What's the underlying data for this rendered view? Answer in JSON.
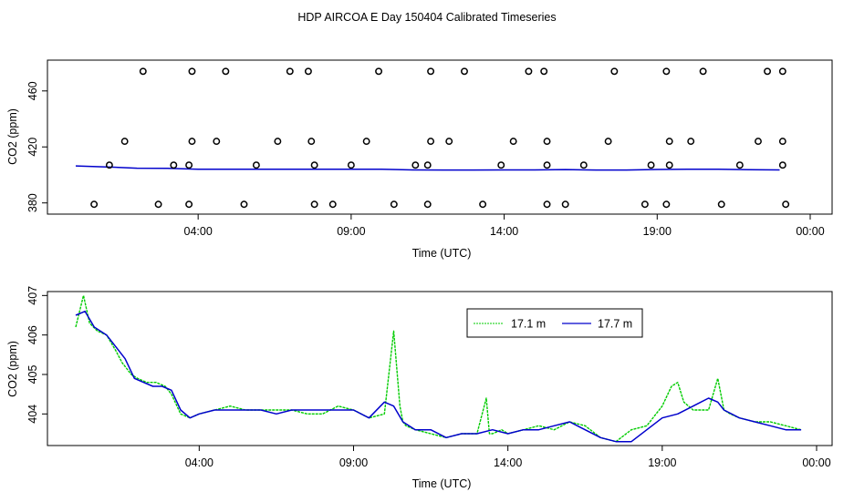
{
  "title": "HDP AIRCOA E  Day 150404  Calibrated Timeseries",
  "chart_data": [
    {
      "type": "scatter",
      "xlabel": "Time (UTC)",
      "ylabel": "CO2 (ppm)",
      "x_unit": "hours",
      "xlim": [
        0,
        24
      ],
      "ylim": [
        372,
        482
      ],
      "x_ticks": [
        {
          "label": "04:00",
          "value": 4
        },
        {
          "label": "09:00",
          "value": 9
        },
        {
          "label": "14:00",
          "value": 14
        },
        {
          "label": "19:00",
          "value": 19
        },
        {
          "label": "00:00",
          "value": 24
        }
      ],
      "y_ticks": [
        380,
        420,
        460
      ],
      "calibration_points": [
        {
          "x": 2.2,
          "y": 474
        },
        {
          "x": 3.8,
          "y": 474
        },
        {
          "x": 4.9,
          "y": 474
        },
        {
          "x": 7.0,
          "y": 474
        },
        {
          "x": 7.6,
          "y": 474
        },
        {
          "x": 9.9,
          "y": 474
        },
        {
          "x": 11.6,
          "y": 474
        },
        {
          "x": 12.7,
          "y": 474
        },
        {
          "x": 14.8,
          "y": 474
        },
        {
          "x": 15.3,
          "y": 474
        },
        {
          "x": 17.6,
          "y": 474
        },
        {
          "x": 19.3,
          "y": 474
        },
        {
          "x": 20.5,
          "y": 474
        },
        {
          "x": 22.6,
          "y": 474
        },
        {
          "x": 23.1,
          "y": 474
        },
        {
          "x": 1.6,
          "y": 424
        },
        {
          "x": 3.8,
          "y": 424
        },
        {
          "x": 4.6,
          "y": 424
        },
        {
          "x": 6.6,
          "y": 424
        },
        {
          "x": 7.7,
          "y": 424
        },
        {
          "x": 9.5,
          "y": 424
        },
        {
          "x": 11.6,
          "y": 424
        },
        {
          "x": 12.2,
          "y": 424
        },
        {
          "x": 14.3,
          "y": 424
        },
        {
          "x": 15.4,
          "y": 424
        },
        {
          "x": 17.4,
          "y": 424
        },
        {
          "x": 19.4,
          "y": 424
        },
        {
          "x": 20.1,
          "y": 424
        },
        {
          "x": 22.3,
          "y": 424
        },
        {
          "x": 23.1,
          "y": 424
        },
        {
          "x": 1.1,
          "y": 407
        },
        {
          "x": 3.2,
          "y": 407
        },
        {
          "x": 3.7,
          "y": 407
        },
        {
          "x": 5.9,
          "y": 407
        },
        {
          "x": 7.8,
          "y": 407
        },
        {
          "x": 9.0,
          "y": 407
        },
        {
          "x": 11.1,
          "y": 407
        },
        {
          "x": 11.5,
          "y": 407
        },
        {
          "x": 13.9,
          "y": 407
        },
        {
          "x": 15.4,
          "y": 407
        },
        {
          "x": 16.6,
          "y": 407
        },
        {
          "x": 18.8,
          "y": 407
        },
        {
          "x": 19.4,
          "y": 407
        },
        {
          "x": 21.7,
          "y": 407
        },
        {
          "x": 23.1,
          "y": 407
        },
        {
          "x": 0.6,
          "y": 379
        },
        {
          "x": 2.7,
          "y": 379
        },
        {
          "x": 3.7,
          "y": 379
        },
        {
          "x": 5.5,
          "y": 379
        },
        {
          "x": 7.8,
          "y": 379
        },
        {
          "x": 8.4,
          "y": 379
        },
        {
          "x": 10.4,
          "y": 379
        },
        {
          "x": 11.5,
          "y": 379
        },
        {
          "x": 13.3,
          "y": 379
        },
        {
          "x": 15.4,
          "y": 379
        },
        {
          "x": 16.0,
          "y": 379
        },
        {
          "x": 18.6,
          "y": 379
        },
        {
          "x": 19.3,
          "y": 379
        },
        {
          "x": 21.1,
          "y": 379
        },
        {
          "x": 23.2,
          "y": 379
        }
      ],
      "series": [
        {
          "color": "#0000cc",
          "x": [
            0,
            1,
            2,
            3,
            4,
            5,
            6,
            7,
            8,
            9,
            10,
            11,
            12,
            13,
            14,
            15,
            16,
            17,
            18,
            19,
            20,
            21,
            22,
            23
          ],
          "y": [
            406.4,
            405.7,
            404.8,
            404.7,
            404.0,
            404.1,
            404.1,
            404.1,
            404.1,
            404.1,
            404.0,
            403.6,
            403.5,
            403.5,
            403.6,
            403.6,
            403.8,
            403.5,
            403.5,
            403.9,
            404.1,
            404.0,
            403.7,
            403.6
          ]
        }
      ]
    },
    {
      "type": "line",
      "xlabel": "Time (UTC)",
      "ylabel": "CO2 (ppm)",
      "x_unit": "hours",
      "xlim": [
        0,
        24
      ],
      "ylim": [
        403.2,
        407.1
      ],
      "x_ticks": [
        {
          "label": "04:00",
          "value": 4
        },
        {
          "label": "09:00",
          "value": 9
        },
        {
          "label": "14:00",
          "value": 14
        },
        {
          "label": "19:00",
          "value": 19
        },
        {
          "label": "00:00",
          "value": 24
        }
      ],
      "y_ticks": [
        404,
        405,
        406,
        407
      ],
      "legend_position": "top-right",
      "series": [
        {
          "name": "17.1 m",
          "color": "#00cc00",
          "x": [
            0,
            0.25,
            0.45,
            0.7,
            1.0,
            1.3,
            1.5,
            1.8,
            2.0,
            2.3,
            2.6,
            2.9,
            3.1,
            3.4,
            3.7,
            4.0,
            4.5,
            5.0,
            5.5,
            6.0,
            6.5,
            7.0,
            7.5,
            8.0,
            8.5,
            9.0,
            9.5,
            10.0,
            10.3,
            10.5,
            10.6,
            10.7,
            11.0,
            11.5,
            12.0,
            12.5,
            13.0,
            13.3,
            13.4,
            13.5,
            13.8,
            14.0,
            14.5,
            15.0,
            15.5,
            16.0,
            16.5,
            17.0,
            17.5,
            18.0,
            18.5,
            19.0,
            19.3,
            19.5,
            19.7,
            20.0,
            20.5,
            20.8,
            21.0,
            21.2,
            21.5,
            22.0,
            22.5,
            23.0,
            23.5
          ],
          "y": [
            406.2,
            407.0,
            406.3,
            406.1,
            406.0,
            405.6,
            405.3,
            405.0,
            404.9,
            404.8,
            404.8,
            404.7,
            404.5,
            404.0,
            403.9,
            404.0,
            404.1,
            404.2,
            404.1,
            404.1,
            404.1,
            404.1,
            404.0,
            404.0,
            404.2,
            404.1,
            403.9,
            404.0,
            406.1,
            404.2,
            403.8,
            403.7,
            403.6,
            403.5,
            403.4,
            403.5,
            403.5,
            404.4,
            403.5,
            403.5,
            403.6,
            403.5,
            403.6,
            403.7,
            403.6,
            403.8,
            403.7,
            403.4,
            403.3,
            403.6,
            403.7,
            404.2,
            404.7,
            404.8,
            404.3,
            404.1,
            404.1,
            404.9,
            404.1,
            404.0,
            403.9,
            403.8,
            403.8,
            403.7,
            403.6
          ]
        },
        {
          "name": "17.7 m",
          "color": "#0000cc",
          "x": [
            0,
            0.3,
            0.6,
            1.0,
            1.3,
            1.6,
            1.9,
            2.2,
            2.5,
            2.8,
            3.1,
            3.4,
            3.7,
            4.0,
            4.5,
            5.0,
            5.5,
            6.0,
            6.5,
            7.0,
            7.5,
            8.0,
            8.5,
            9.0,
            9.5,
            10.0,
            10.3,
            10.6,
            11.0,
            11.5,
            12.0,
            12.5,
            13.0,
            13.5,
            14.0,
            14.5,
            15.0,
            15.5,
            16.0,
            16.5,
            17.0,
            17.5,
            18.0,
            18.5,
            19.0,
            19.5,
            20.0,
            20.5,
            20.8,
            21.0,
            21.5,
            22.0,
            22.5,
            23.0,
            23.5
          ],
          "y": [
            406.5,
            406.6,
            406.2,
            406.0,
            405.7,
            405.4,
            404.9,
            404.8,
            404.7,
            404.7,
            404.6,
            404.1,
            403.9,
            404.0,
            404.1,
            404.1,
            404.1,
            404.1,
            404.0,
            404.1,
            404.1,
            404.1,
            404.1,
            404.1,
            403.9,
            404.3,
            404.2,
            403.8,
            403.6,
            403.6,
            403.4,
            403.5,
            403.5,
            403.6,
            403.5,
            403.6,
            403.6,
            403.7,
            403.8,
            403.6,
            403.4,
            403.3,
            403.3,
            403.6,
            403.9,
            404.0,
            404.2,
            404.4,
            404.3,
            404.1,
            403.9,
            403.8,
            403.7,
            403.6,
            403.6
          ]
        }
      ]
    }
  ]
}
